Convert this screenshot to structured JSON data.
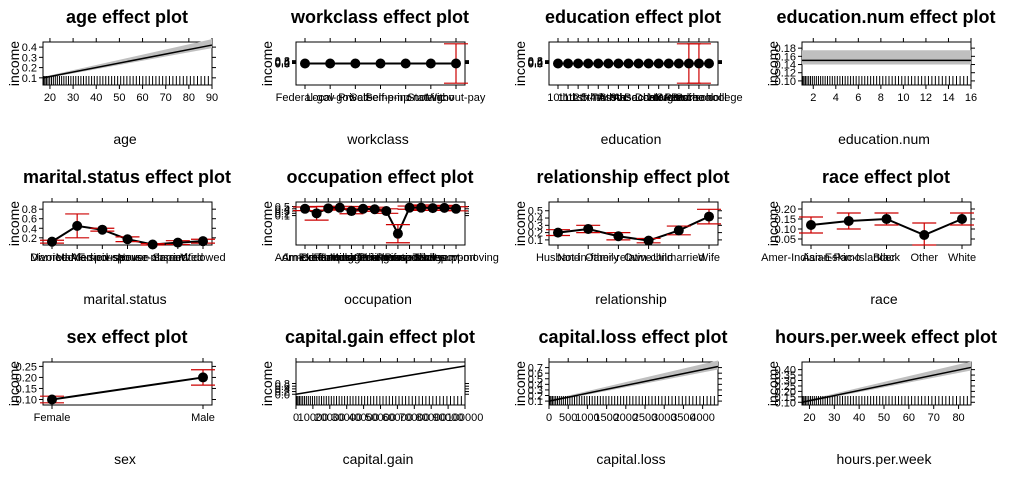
{
  "chart_data": [
    {
      "type": "line",
      "title": "age effect plot",
      "xlabel": "age",
      "ylabel": "income",
      "xlim": [
        17,
        90
      ],
      "ylim": [
        0.03,
        0.45
      ],
      "xticks": [
        "20",
        "30",
        "40",
        "50",
        "60",
        "70",
        "80",
        "90"
      ],
      "xtick_values": [
        20,
        30,
        40,
        50,
        60,
        70,
        80,
        90
      ],
      "yticks": [
        "0.1",
        "0.2",
        "0.3",
        "0.4"
      ],
      "ytick_values": [
        0.1,
        0.2,
        0.3,
        0.4
      ],
      "x": [
        17,
        90
      ],
      "y": [
        0.1,
        0.42
      ],
      "band": true,
      "rug": true
    },
    {
      "type": "line",
      "title": "workclass effect plot",
      "xlabel": "workclass",
      "ylabel": "income",
      "categories": [
        "Federal-gov",
        "Local-gov",
        "Private",
        "Self-emp-inc",
        "Self-emp-not-inc",
        "State-gov",
        "Without-pay"
      ],
      "xticks": [
        "Federal-gov",
        "Local-gov",
        "Private",
        "Self-emp-inc",
        "Self-emp-not-inc",
        "State-gov",
        "Without-pay"
      ],
      "yticks": [
        "0.0",
        "0.2",
        "0.4",
        "0.6",
        "0.8"
      ],
      "ytick_values": [
        0.0,
        0.2,
        0.4,
        0.6,
        0.8
      ],
      "ylim": [
        -6,
        6
      ],
      "values": [
        0,
        0,
        0,
        0,
        0,
        0,
        0
      ],
      "errors": [
        0,
        0,
        0,
        0,
        0,
        0,
        5.5
      ]
    },
    {
      "type": "line",
      "title": "education effect plot",
      "xlabel": "education",
      "ylabel": "income",
      "categories": [
        "10th",
        "11th",
        "12th",
        "1st-4th",
        "5th-6th",
        "7th-8th",
        "9th",
        "Assoc-acdm",
        "Assoc-voc",
        "Bachelors",
        "Doctorate",
        "HS-grad",
        "Masters",
        "Preschool",
        "Prof-school",
        "Some-college"
      ],
      "xticks": [
        "10th",
        "11th",
        "12th",
        "1st-4th",
        "5th-6th",
        "7th-8th",
        "9th",
        "Assoc-acdm",
        "Assoc-voc",
        "Bachelors",
        "Doctorate",
        "HS-grad",
        "Masters",
        "Preschool",
        "Prof-school",
        "Some-college"
      ],
      "yticks": [
        "0.0",
        "0.2",
        "0.4",
        "0.6",
        "0.8"
      ],
      "ytick_values": [
        0.0,
        0.2,
        0.4,
        0.6,
        0.8
      ],
      "ylim": [
        -6,
        6
      ],
      "values": [
        0,
        0,
        0,
        0,
        0,
        0,
        0,
        0,
        0,
        0,
        0,
        0,
        0,
        0,
        0,
        0
      ],
      "errors": [
        0,
        0,
        0,
        0,
        0,
        0,
        0,
        0,
        0,
        0,
        0,
        0,
        0,
        5.5,
        5.5,
        0
      ]
    },
    {
      "type": "line",
      "title": "education.num effect plot",
      "xlabel": "education.num",
      "ylabel": "income",
      "xlim": [
        1,
        16
      ],
      "ylim": [
        0.09,
        0.195
      ],
      "xticks": [
        "2",
        "4",
        "6",
        "8",
        "10",
        "12",
        "14",
        "16"
      ],
      "xtick_values": [
        2,
        4,
        6,
        8,
        10,
        12,
        14,
        16
      ],
      "yticks": [
        "0.10",
        "0.12",
        "0.14",
        "0.16",
        "0.18"
      ],
      "ytick_values": [
        0.1,
        0.12,
        0.14,
        0.16,
        0.18
      ],
      "x": [
        1,
        16
      ],
      "y": [
        0.15,
        0.15
      ],
      "band": true,
      "band_range": [
        0.14,
        0.175
      ],
      "rug": true
    },
    {
      "type": "line",
      "title": "marital.status effect plot",
      "xlabel": "marital.status",
      "ylabel": "income",
      "categories": [
        "Divorced",
        "Married-AF-spouse",
        "Married-civ-spouse",
        "Married-spouse-absent",
        "Never-married",
        "Separated",
        "Widowed"
      ],
      "xticks": [
        "Divorced",
        "Married-AF-spouse",
        "Married-civ-spouse",
        "Married-spouse-absent",
        "Never-married",
        "Separated",
        "Widowed"
      ],
      "yticks": [
        "0.2",
        "0.4",
        "0.6",
        "0.8"
      ],
      "ytick_values": [
        0.2,
        0.4,
        0.6,
        0.8
      ],
      "ylim": [
        0.05,
        0.95
      ],
      "values": [
        0.12,
        0.45,
        0.37,
        0.17,
        0.06,
        0.1,
        0.13
      ],
      "errors": [
        0.03,
        0.25,
        0.03,
        0.05,
        0.02,
        0.04,
        0.04
      ]
    },
    {
      "type": "line",
      "title": "occupation effect plot",
      "xlabel": "occupation",
      "ylabel": "income",
      "categories": [
        "Adm-clerical",
        "Armed-Forces",
        "Craft-repair",
        "Exec-managerial",
        "Farming-fishing",
        "Handlers-cleaners",
        "Machine-op-inspct",
        "Other-service",
        "Priv-house-serv",
        "Prof-specialty",
        "Protective-serv",
        "Sales",
        "Tech-support",
        "Transport-moving"
      ],
      "xticks": [
        "Adm-clerical",
        "Armed-Forces",
        "Craft-repair",
        "Exec-managerial",
        "Farming-fishing",
        "Handlers-cleaners",
        "Machine-op-inspct",
        "Other-service",
        "Priv-house-serv",
        "Prof-specialty",
        "Protective-serv",
        "Sales",
        "Tech-support",
        "Transport-moving"
      ],
      "yticks": [
        "0.1",
        "0.2",
        "0.3",
        "0.4",
        "0.5"
      ],
      "ytick_values": [
        0.1,
        0.2,
        0.3,
        0.4,
        0.5
      ],
      "ylim": [
        -1.2,
        0.7
      ],
      "values": [
        0.4,
        0.2,
        0.42,
        0.45,
        0.3,
        0.4,
        0.38,
        0.3,
        -0.7,
        0.45,
        0.45,
        0.43,
        0.44,
        0.4
      ],
      "errors": [
        0.08,
        0.3,
        0.08,
        0.06,
        0.12,
        0.1,
        0.09,
        0.1,
        0.4,
        0.07,
        0.12,
        0.08,
        0.11,
        0.09
      ]
    },
    {
      "type": "line",
      "title": "relationship effect plot",
      "xlabel": "relationship",
      "ylabel": "income",
      "categories": [
        "Husband",
        "Not-in-family",
        "Other-relative",
        "Own-child",
        "Unmarried",
        "Wife"
      ],
      "xticks": [
        "Husband",
        "Not-in-family",
        "Other-relative",
        "Own-child",
        "Unmarried",
        "Wife"
      ],
      "yticks": [
        "0.1",
        "0.2",
        "0.3",
        "0.4",
        "0.5"
      ],
      "ytick_values": [
        0.1,
        0.2,
        0.3,
        0.4,
        0.5
      ],
      "ylim": [
        0.03,
        0.62
      ],
      "values": [
        0.2,
        0.25,
        0.15,
        0.09,
        0.23,
        0.42
      ],
      "errors": [
        0.04,
        0.05,
        0.05,
        0.03,
        0.06,
        0.1
      ]
    },
    {
      "type": "line",
      "title": "race effect plot",
      "xlabel": "race",
      "ylabel": "income",
      "categories": [
        "Amer-Indian-Eskimo",
        "Asian-Pac-Islander",
        "Black",
        "Other",
        "White"
      ],
      "xticks": [
        "Amer-Indian-Eskimo",
        "Asian-Pac-Islander",
        "Black",
        "Other",
        "White"
      ],
      "yticks": [
        "0.05",
        "0.10",
        "0.15",
        "0.20"
      ],
      "ytick_values": [
        0.05,
        0.1,
        0.15,
        0.2
      ],
      "ylim": [
        0.02,
        0.235
      ],
      "values": [
        0.12,
        0.14,
        0.15,
        0.07,
        0.15
      ],
      "errors": [
        0.04,
        0.04,
        0.03,
        0.06,
        0.03
      ]
    },
    {
      "type": "line",
      "title": "sex effect plot",
      "xlabel": "sex",
      "ylabel": "income",
      "categories": [
        "Female",
        "Male"
      ],
      "xticks": [
        "Female",
        "Male"
      ],
      "yticks": [
        "0.10",
        "0.15",
        "0.20",
        "0.25"
      ],
      "ytick_values": [
        0.1,
        0.15,
        0.2,
        0.25
      ],
      "ylim": [
        0.075,
        0.27
      ],
      "values": [
        0.1,
        0.2
      ],
      "errors": [
        0.015,
        0.035
      ]
    },
    {
      "type": "line",
      "title": "capital.gain effect plot",
      "xlabel": "capital.gain",
      "ylabel": "income",
      "xlim": [
        0,
        100000
      ],
      "ylim": [
        -0.8,
        2.4
      ],
      "xticks": [
        "0",
        "10000",
        "20000",
        "30000",
        "40000",
        "50000",
        "60000",
        "70000",
        "80000",
        "90000",
        "100000"
      ],
      "xtick_values": [
        0,
        10000,
        20000,
        30000,
        40000,
        50000,
        60000,
        70000,
        80000,
        90000,
        100000
      ],
      "yticks": [
        "0.0",
        "0.2",
        "0.4",
        "0.6",
        "0.8"
      ],
      "ytick_values": [
        0.0,
        0.2,
        0.4,
        0.6,
        0.8
      ],
      "x": [
        0,
        100000
      ],
      "y": [
        0,
        2.1
      ],
      "band": false,
      "rug": true
    },
    {
      "type": "line",
      "title": "capital.loss effect plot",
      "xlabel": "capital.loss",
      "ylabel": "income",
      "xlim": [
        0,
        4400
      ],
      "ylim": [
        0.03,
        0.8
      ],
      "xticks": [
        "0",
        "500",
        "1000",
        "1500",
        "2000",
        "2500",
        "3000",
        "3500",
        "4000"
      ],
      "xtick_values": [
        0,
        500,
        1000,
        1500,
        2000,
        2500,
        3000,
        3500,
        4000
      ],
      "yticks": [
        "0.1",
        "0.2",
        "0.3",
        "0.4",
        "0.5",
        "0.6",
        "0.7"
      ],
      "ytick_values": [
        0.1,
        0.2,
        0.3,
        0.4,
        0.5,
        0.6,
        0.7
      ],
      "x": [
        0,
        4400
      ],
      "y": [
        0.1,
        0.72
      ],
      "band": true,
      "rug": true
    },
    {
      "type": "line",
      "title": "hours.per.week effect plot",
      "xlabel": "hours.per.week",
      "ylabel": "income",
      "xlim": [
        17,
        85
      ],
      "ylim": [
        0.075,
        0.47
      ],
      "xticks": [
        "20",
        "30",
        "40",
        "50",
        "60",
        "70",
        "80"
      ],
      "xtick_values": [
        20,
        30,
        40,
        50,
        60,
        70,
        80
      ],
      "yticks": [
        "0.10",
        "0.15",
        "0.20",
        "0.25",
        "0.30",
        "0.35",
        "0.40"
      ],
      "ytick_values": [
        0.1,
        0.15,
        0.2,
        0.25,
        0.3,
        0.35,
        0.4
      ],
      "x": [
        17,
        85
      ],
      "y": [
        0.1,
        0.42
      ],
      "band": true,
      "rug": true
    }
  ],
  "colors": {
    "line": "#000000",
    "ci": "#cc0000",
    "band": "#bfbfbf"
  }
}
